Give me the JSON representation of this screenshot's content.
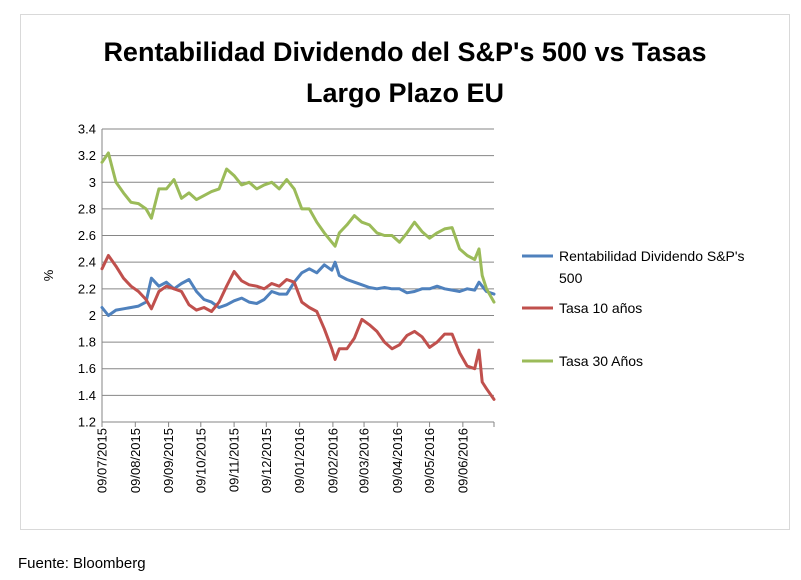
{
  "chart_data": {
    "type": "line",
    "title": "Rentabilidad Dividendo del S&P's 500 vs Tasas Largo Plazo EU",
    "title_lines": [
      "Rentabilidad Dividendo del S&P's 500 vs Tasas",
      "Largo Plazo EU"
    ],
    "ylabel": "%",
    "xlabel": "",
    "ylim": [
      1.2,
      3.4
    ],
    "yticks": [
      1.2,
      1.4,
      1.6,
      1.8,
      2,
      2.2,
      2.4,
      2.6,
      2.8,
      3,
      3.2,
      3.4
    ],
    "ytick_labels": [
      "1.2",
      "1.4",
      "1.6",
      "1.8",
      "2",
      "2.2",
      "2.4",
      "2.6",
      "2.8",
      "3",
      "3.2",
      "3.4"
    ],
    "xlim": [
      "2015-07-09",
      "2016-07-08"
    ],
    "xtick_labels": [
      "09/07/2015",
      "09/08/2015",
      "09/09/2015",
      "09/10/2015",
      "09/11/2015",
      "09/12/2015",
      "09/01/2016",
      "09/02/2016",
      "09/03/2016",
      "09/04/2016",
      "09/05/2016",
      "09/06/2016"
    ],
    "xtick_dates": [
      "2015-07-09",
      "2015-08-09",
      "2015-09-09",
      "2015-10-09",
      "2015-11-09",
      "2015-12-09",
      "2016-01-09",
      "2016-02-09",
      "2016-03-09",
      "2016-04-09",
      "2016-05-09",
      "2016-06-09"
    ],
    "grid": true,
    "legend_position": "right",
    "x": [
      "2015-07-09",
      "2015-07-15",
      "2015-07-22",
      "2015-07-29",
      "2015-08-05",
      "2015-08-12",
      "2015-08-19",
      "2015-08-24",
      "2015-08-31",
      "2015-09-07",
      "2015-09-14",
      "2015-09-21",
      "2015-09-28",
      "2015-10-05",
      "2015-10-12",
      "2015-10-19",
      "2015-10-26",
      "2015-11-02",
      "2015-11-09",
      "2015-11-16",
      "2015-11-23",
      "2015-11-30",
      "2015-12-07",
      "2015-12-14",
      "2015-12-21",
      "2015-12-28",
      "2016-01-04",
      "2016-01-11",
      "2016-01-18",
      "2016-01-25",
      "2016-02-01",
      "2016-02-08",
      "2016-02-11",
      "2016-02-15",
      "2016-02-22",
      "2016-02-29",
      "2016-03-07",
      "2016-03-14",
      "2016-03-21",
      "2016-03-28",
      "2016-04-04",
      "2016-04-11",
      "2016-04-18",
      "2016-04-25",
      "2016-05-02",
      "2016-05-09",
      "2016-05-16",
      "2016-05-23",
      "2016-05-30",
      "2016-06-06",
      "2016-06-13",
      "2016-06-20",
      "2016-06-24",
      "2016-06-27",
      "2016-07-01",
      "2016-07-08"
    ],
    "series": [
      {
        "name": "Rentabilidad Dividendo S&P's 500",
        "color": "#4f81bd",
        "values": [
          2.06,
          2.0,
          2.04,
          2.05,
          2.06,
          2.07,
          2.1,
          2.28,
          2.22,
          2.25,
          2.2,
          2.24,
          2.27,
          2.18,
          2.12,
          2.1,
          2.06,
          2.08,
          2.11,
          2.13,
          2.1,
          2.09,
          2.12,
          2.18,
          2.16,
          2.16,
          2.25,
          2.32,
          2.35,
          2.32,
          2.38,
          2.34,
          2.4,
          2.3,
          2.27,
          2.25,
          2.23,
          2.21,
          2.2,
          2.21,
          2.2,
          2.2,
          2.17,
          2.18,
          2.2,
          2.2,
          2.22,
          2.2,
          2.19,
          2.18,
          2.2,
          2.19,
          2.25,
          2.22,
          2.18,
          2.16
        ]
      },
      {
        "name": "Tasa 10 años",
        "color": "#c0504d",
        "values": [
          2.35,
          2.45,
          2.37,
          2.28,
          2.22,
          2.18,
          2.12,
          2.05,
          2.18,
          2.22,
          2.2,
          2.18,
          2.08,
          2.04,
          2.06,
          2.03,
          2.1,
          2.22,
          2.33,
          2.26,
          2.23,
          2.22,
          2.2,
          2.24,
          2.22,
          2.27,
          2.25,
          2.1,
          2.06,
          2.03,
          1.9,
          1.75,
          1.67,
          1.75,
          1.75,
          1.83,
          1.97,
          1.93,
          1.88,
          1.8,
          1.75,
          1.78,
          1.85,
          1.88,
          1.84,
          1.76,
          1.8,
          1.86,
          1.86,
          1.72,
          1.62,
          1.6,
          1.74,
          1.5,
          1.45,
          1.37
        ]
      },
      {
        "name": "Tasa 30 Años",
        "color": "#9bbb59",
        "values": [
          3.15,
          3.22,
          3.0,
          2.92,
          2.85,
          2.84,
          2.8,
          2.73,
          2.95,
          2.95,
          3.02,
          2.88,
          2.92,
          2.87,
          2.9,
          2.93,
          2.95,
          3.1,
          3.05,
          2.98,
          3.0,
          2.95,
          2.98,
          3.0,
          2.95,
          3.02,
          2.95,
          2.8,
          2.8,
          2.7,
          2.62,
          2.55,
          2.52,
          2.62,
          2.68,
          2.75,
          2.7,
          2.68,
          2.62,
          2.6,
          2.6,
          2.55,
          2.62,
          2.7,
          2.63,
          2.58,
          2.62,
          2.65,
          2.66,
          2.5,
          2.45,
          2.42,
          2.5,
          2.3,
          2.2,
          2.1
        ]
      }
    ]
  },
  "legend": {
    "items": [
      {
        "label_line1": "Rentabilidad Dividendo S&P's",
        "label_line2": "500",
        "color": "#4f81bd"
      },
      {
        "label_line1": "Tasa 10 años",
        "label_line2": "",
        "color": "#c0504d"
      },
      {
        "label_line1": "Tasa 30 Años",
        "label_line2": "",
        "color": "#9bbb59"
      }
    ]
  },
  "source_note": "Fuente: Bloomberg"
}
